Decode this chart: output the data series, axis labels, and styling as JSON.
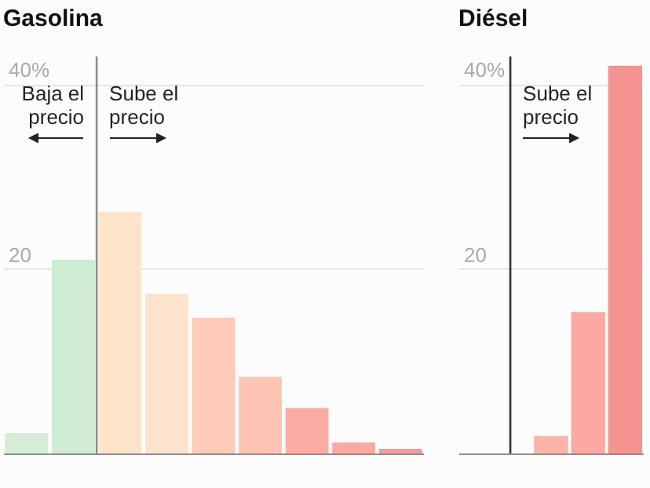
{
  "chart_data": [
    {
      "type": "bar",
      "title": "Gasolina",
      "categories": [
        null,
        null,
        null,
        null,
        null,
        null,
        null,
        null,
        null
      ],
      "values": [
        2.2,
        21.0,
        26.2,
        17.3,
        14.7,
        8.3,
        4.9,
        1.2,
        0.5
      ],
      "colors": [
        "#d4eed6",
        "#cdecd2",
        "#fee5ca",
        "#fee3cc",
        "#fdcbb8",
        "#fdc3b3",
        "#fcaba3",
        "#fca8a0",
        "#f7999a"
      ],
      "ylim": [
        0,
        43
      ],
      "yticks": [
        {
          "value": 40,
          "label": "40%"
        },
        20
      ],
      "grid": "y",
      "tick_labels": "y",
      "annotations": [
        "Baja el precio",
        "Sube el precio"
      ]
    },
    {
      "type": "bar",
      "title": "Diésel",
      "categories": [
        null,
        null,
        null,
        null,
        null
      ],
      "values": [
        0,
        0,
        1.9,
        15.3,
        42.0
      ],
      "colors": [
        "#fcb3a8",
        "#fcb3a8",
        "#fcb3a8",
        "#fcaaa1",
        "#f59391"
      ],
      "ylim": [
        0,
        43
      ],
      "yticks": [
        {
          "value": 40,
          "label": "40%"
        },
        20
      ],
      "grid": "y",
      "tick_labels": "y",
      "annotations": [
        "Sube el precio"
      ]
    }
  ]
}
